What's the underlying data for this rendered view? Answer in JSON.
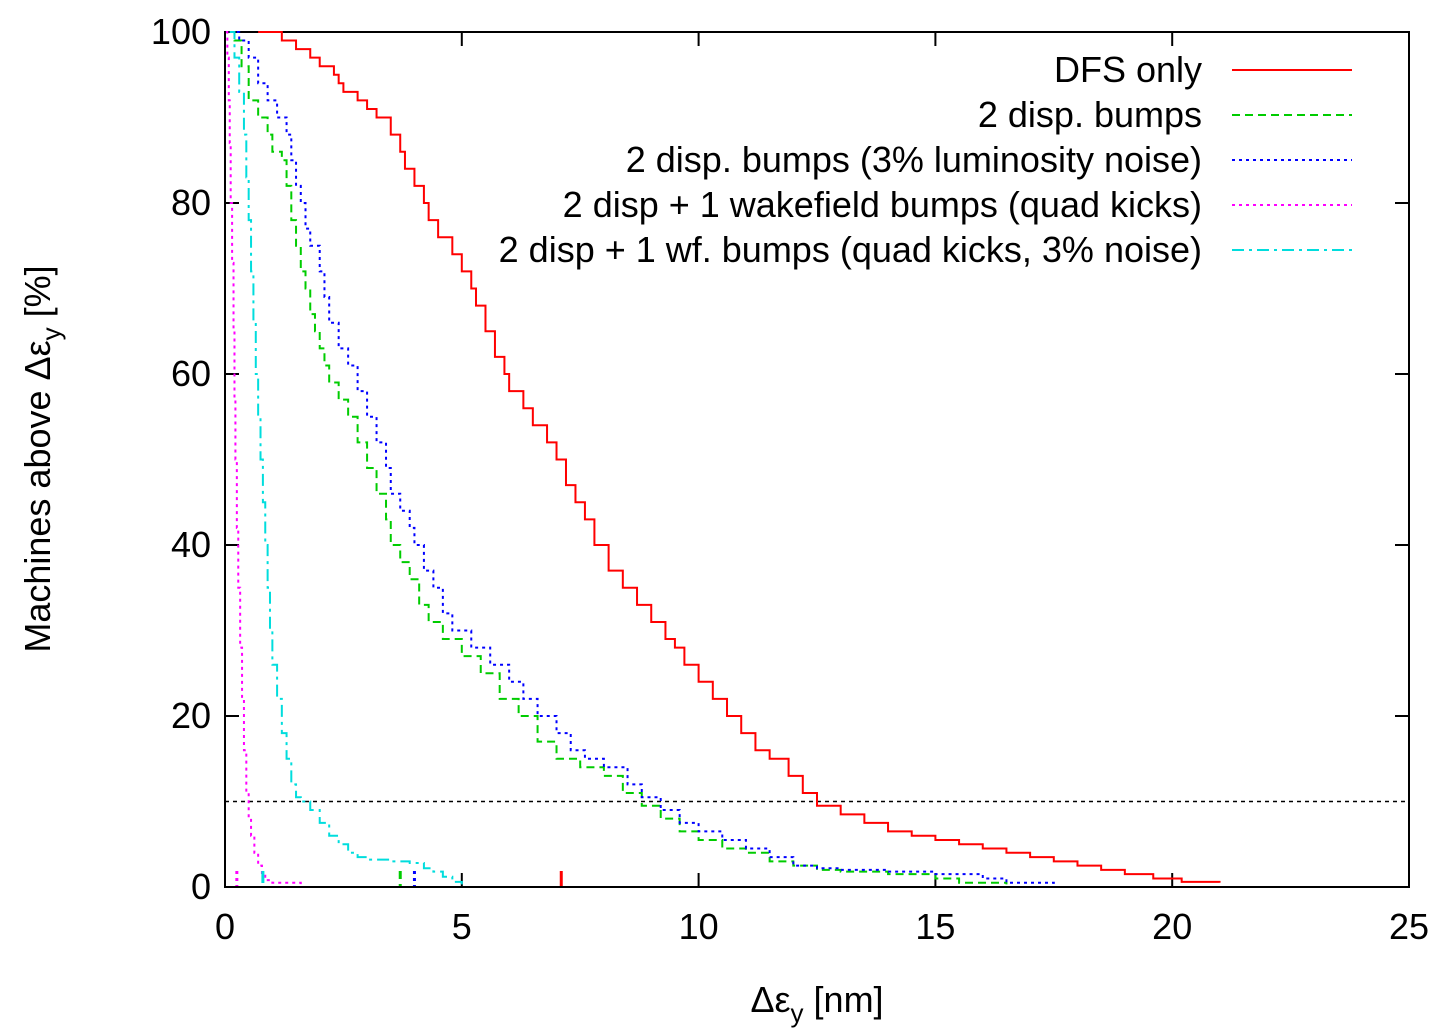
{
  "chart_data": {
    "type": "line",
    "xlabel": "Δε",
    "xlabel_sub": "y",
    "xlabel_unit": " [nm]",
    "ylabel": "Machines above Δε",
    "ylabel_sub": "y",
    "ylabel_unit": " [%]",
    "xlim": [
      0,
      25
    ],
    "ylim": [
      0,
      100
    ],
    "x_ticks": [
      0,
      5,
      10,
      15,
      20,
      25
    ],
    "y_ticks": [
      0,
      20,
      40,
      60,
      80,
      100
    ],
    "grid": false,
    "legend_position": "top-right",
    "reference_line": {
      "y": 10,
      "style": "dashed",
      "color": "#000000"
    },
    "series": [
      {
        "name": "DFS only",
        "color": "#ff0000",
        "dash": "solid",
        "marker_x": 7.1,
        "points": [
          [
            0.7,
            100
          ],
          [
            1.2,
            99
          ],
          [
            1.5,
            98
          ],
          [
            1.8,
            97
          ],
          [
            2.0,
            96
          ],
          [
            2.3,
            95
          ],
          [
            2.4,
            94
          ],
          [
            2.5,
            93
          ],
          [
            2.8,
            92
          ],
          [
            3.0,
            91
          ],
          [
            3.2,
            90
          ],
          [
            3.5,
            88
          ],
          [
            3.7,
            86
          ],
          [
            3.8,
            84
          ],
          [
            4.0,
            82
          ],
          [
            4.2,
            80
          ],
          [
            4.3,
            78
          ],
          [
            4.5,
            76
          ],
          [
            4.8,
            74
          ],
          [
            5.0,
            72
          ],
          [
            5.2,
            70
          ],
          [
            5.3,
            68
          ],
          [
            5.5,
            65
          ],
          [
            5.7,
            62
          ],
          [
            5.9,
            60
          ],
          [
            6.0,
            58
          ],
          [
            6.3,
            56
          ],
          [
            6.5,
            54
          ],
          [
            6.8,
            52
          ],
          [
            7.0,
            50
          ],
          [
            7.2,
            47
          ],
          [
            7.4,
            45
          ],
          [
            7.6,
            43
          ],
          [
            7.8,
            40
          ],
          [
            8.1,
            37
          ],
          [
            8.4,
            35
          ],
          [
            8.7,
            33
          ],
          [
            9.0,
            31
          ],
          [
            9.3,
            29
          ],
          [
            9.5,
            28
          ],
          [
            9.7,
            26
          ],
          [
            10.0,
            24
          ],
          [
            10.3,
            22
          ],
          [
            10.6,
            20
          ],
          [
            10.9,
            18
          ],
          [
            11.2,
            16
          ],
          [
            11.5,
            15
          ],
          [
            11.9,
            13
          ],
          [
            12.2,
            11
          ],
          [
            12.5,
            9.5
          ],
          [
            13.0,
            8.5
          ],
          [
            13.5,
            7.5
          ],
          [
            14.0,
            6.5
          ],
          [
            14.5,
            6
          ],
          [
            15.0,
            5.5
          ],
          [
            15.5,
            5
          ],
          [
            16.0,
            4.5
          ],
          [
            16.5,
            4
          ],
          [
            17.0,
            3.5
          ],
          [
            17.5,
            3
          ],
          [
            18.0,
            2.5
          ],
          [
            18.5,
            2
          ],
          [
            19.0,
            1.5
          ],
          [
            19.6,
            1
          ],
          [
            20.2,
            0.6
          ],
          [
            21.0,
            0.5
          ]
        ]
      },
      {
        "name": "2 disp. bumps",
        "color": "#00cc00",
        "dash": "dashed",
        "marker_x": 3.7,
        "points": [
          [
            0.1,
            100
          ],
          [
            0.2,
            99
          ],
          [
            0.35,
            96
          ],
          [
            0.5,
            92
          ],
          [
            0.7,
            90
          ],
          [
            0.9,
            88
          ],
          [
            1.0,
            86
          ],
          [
            1.2,
            85
          ],
          [
            1.3,
            82
          ],
          [
            1.4,
            78
          ],
          [
            1.5,
            75
          ],
          [
            1.6,
            72
          ],
          [
            1.7,
            70
          ],
          [
            1.8,
            67
          ],
          [
            1.9,
            65
          ],
          [
            2.0,
            63
          ],
          [
            2.1,
            61
          ],
          [
            2.2,
            59
          ],
          [
            2.4,
            57
          ],
          [
            2.6,
            55
          ],
          [
            2.8,
            52
          ],
          [
            3.0,
            49
          ],
          [
            3.2,
            46
          ],
          [
            3.4,
            43
          ],
          [
            3.5,
            40
          ],
          [
            3.7,
            38
          ],
          [
            3.9,
            36
          ],
          [
            4.1,
            33
          ],
          [
            4.3,
            31
          ],
          [
            4.6,
            29
          ],
          [
            5.0,
            27
          ],
          [
            5.4,
            25
          ],
          [
            5.8,
            22
          ],
          [
            6.2,
            20
          ],
          [
            6.6,
            17
          ],
          [
            7.0,
            15
          ],
          [
            7.5,
            14
          ],
          [
            8.0,
            13
          ],
          [
            8.4,
            11
          ],
          [
            8.8,
            9.5
          ],
          [
            9.2,
            8
          ],
          [
            9.6,
            6.5
          ],
          [
            10.0,
            5.5
          ],
          [
            10.5,
            4.5
          ],
          [
            11.0,
            4
          ],
          [
            11.5,
            3
          ],
          [
            12.0,
            2.5
          ],
          [
            12.5,
            2
          ],
          [
            13.0,
            1.8
          ],
          [
            14.0,
            1.5
          ],
          [
            15.0,
            1
          ],
          [
            15.5,
            0.5
          ],
          [
            16.5,
            0.3
          ]
        ]
      },
      {
        "name": "2 disp. bumps (3% luminosity noise)",
        "color": "#0000ff",
        "dash": "dotted",
        "marker_x": 4.0,
        "points": [
          [
            0.1,
            100
          ],
          [
            0.3,
            99
          ],
          [
            0.5,
            97
          ],
          [
            0.7,
            94
          ],
          [
            0.9,
            92
          ],
          [
            1.1,
            90
          ],
          [
            1.3,
            88
          ],
          [
            1.4,
            85
          ],
          [
            1.5,
            82
          ],
          [
            1.6,
            80
          ],
          [
            1.7,
            77
          ],
          [
            1.8,
            75
          ],
          [
            2.0,
            72
          ],
          [
            2.1,
            69
          ],
          [
            2.2,
            66
          ],
          [
            2.4,
            63
          ],
          [
            2.6,
            61
          ],
          [
            2.8,
            58
          ],
          [
            3.0,
            55
          ],
          [
            3.2,
            52
          ],
          [
            3.4,
            49
          ],
          [
            3.5,
            46
          ],
          [
            3.7,
            44
          ],
          [
            3.9,
            42
          ],
          [
            4.0,
            40
          ],
          [
            4.2,
            37
          ],
          [
            4.4,
            35
          ],
          [
            4.6,
            32
          ],
          [
            4.8,
            30
          ],
          [
            5.2,
            28
          ],
          [
            5.6,
            26
          ],
          [
            6.0,
            24
          ],
          [
            6.3,
            22
          ],
          [
            6.6,
            20
          ],
          [
            7.0,
            18
          ],
          [
            7.3,
            16
          ],
          [
            7.6,
            15
          ],
          [
            8.0,
            14
          ],
          [
            8.5,
            12
          ],
          [
            8.8,
            10.5
          ],
          [
            9.2,
            9
          ],
          [
            9.6,
            7.5
          ],
          [
            10.0,
            6.5
          ],
          [
            10.5,
            5.5
          ],
          [
            11.0,
            4.5
          ],
          [
            11.5,
            3.5
          ],
          [
            12.0,
            2.5
          ],
          [
            12.5,
            2.2
          ],
          [
            13.0,
            2
          ],
          [
            14.0,
            1.8
          ],
          [
            15.0,
            1.5
          ],
          [
            16.0,
            1
          ],
          [
            16.5,
            0.5
          ],
          [
            17.5,
            0.3
          ]
        ]
      },
      {
        "name": "2 disp + 1 wakefield bumps (quad kicks)",
        "color": "#ff00ff",
        "dash": "dotted",
        "marker_x": 0.25,
        "points": [
          [
            0.02,
            100
          ],
          [
            0.05,
            97
          ],
          [
            0.08,
            92
          ],
          [
            0.1,
            87
          ],
          [
            0.12,
            80
          ],
          [
            0.15,
            73
          ],
          [
            0.18,
            65
          ],
          [
            0.2,
            57
          ],
          [
            0.22,
            50
          ],
          [
            0.25,
            42
          ],
          [
            0.28,
            35
          ],
          [
            0.32,
            28
          ],
          [
            0.36,
            22
          ],
          [
            0.4,
            16
          ],
          [
            0.45,
            11
          ],
          [
            0.5,
            8
          ],
          [
            0.55,
            6
          ],
          [
            0.62,
            4
          ],
          [
            0.7,
            2.5
          ],
          [
            0.78,
            1.5
          ],
          [
            0.85,
            0.8
          ],
          [
            1.0,
            0.5
          ],
          [
            1.6,
            0.3
          ]
        ]
      },
      {
        "name": "2 disp + 1 wf. bumps (quad kicks, 3% noise)",
        "color": "#00dddd",
        "dash": "dashdot",
        "marker_x": 0.8,
        "points": [
          [
            0.1,
            100
          ],
          [
            0.2,
            97
          ],
          [
            0.3,
            93
          ],
          [
            0.4,
            88
          ],
          [
            0.45,
            83
          ],
          [
            0.5,
            78
          ],
          [
            0.55,
            72
          ],
          [
            0.6,
            66
          ],
          [
            0.65,
            60
          ],
          [
            0.7,
            55
          ],
          [
            0.75,
            50
          ],
          [
            0.8,
            45
          ],
          [
            0.85,
            40
          ],
          [
            0.9,
            35
          ],
          [
            0.95,
            30
          ],
          [
            1.0,
            26
          ],
          [
            1.1,
            22
          ],
          [
            1.2,
            18
          ],
          [
            1.3,
            15
          ],
          [
            1.4,
            12
          ],
          [
            1.5,
            10.5
          ],
          [
            1.6,
            10
          ],
          [
            1.8,
            9
          ],
          [
            2.0,
            7.5
          ],
          [
            2.2,
            6
          ],
          [
            2.4,
            5
          ],
          [
            2.6,
            4
          ],
          [
            2.8,
            3.5
          ],
          [
            3.0,
            3.2
          ],
          [
            3.5,
            3
          ],
          [
            3.9,
            2.8
          ],
          [
            4.2,
            2.2
          ],
          [
            4.4,
            1.8
          ],
          [
            4.6,
            1.2
          ],
          [
            4.8,
            0.6
          ],
          [
            5.0,
            0.3
          ]
        ]
      }
    ]
  }
}
